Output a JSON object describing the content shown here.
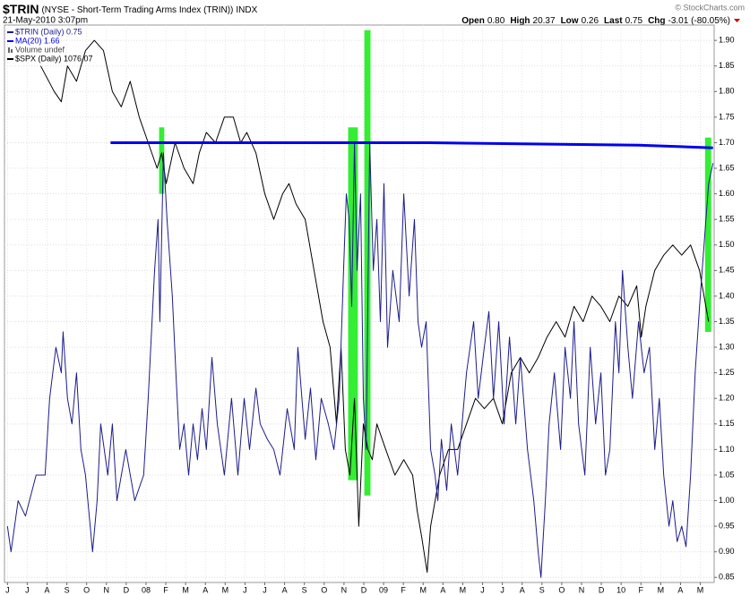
{
  "header": {
    "symbol": "$TRIN",
    "name": "(NYSE - Short-Term Trading Arms Index (TRIN))",
    "exchange": "INDX",
    "date": "21-May-2010 3:07pm",
    "copyright": "© StockCharts.com",
    "quote": [
      {
        "label": "Open",
        "value": "0.80"
      },
      {
        "label": "High",
        "value": "20.37"
      },
      {
        "label": "Low",
        "value": "0.26"
      },
      {
        "label": "Last",
        "value": "0.75"
      },
      {
        "label": "Chg",
        "value": "-3.01 (-80.05%)"
      }
    ]
  },
  "chart_data": {
    "type": "line",
    "grid": true,
    "xlim": [
      -0.15,
      35.7
    ],
    "ylim": [
      0.84,
      1.93
    ],
    "xticks": [
      {
        "value": 0,
        "label": "J"
      },
      {
        "value": 1,
        "label": "J"
      },
      {
        "value": 2,
        "label": "A"
      },
      {
        "value": 3,
        "label": "S"
      },
      {
        "value": 4,
        "label": "O"
      },
      {
        "value": 5,
        "label": "N"
      },
      {
        "value": 6,
        "label": "D"
      },
      {
        "value": 7,
        "label": "08"
      },
      {
        "value": 8,
        "label": "F"
      },
      {
        "value": 9,
        "label": "M"
      },
      {
        "value": 10,
        "label": "A"
      },
      {
        "value": 11,
        "label": "M"
      },
      {
        "value": 12,
        "label": "J"
      },
      {
        "value": 13,
        "label": "J"
      },
      {
        "value": 14,
        "label": "A"
      },
      {
        "value": 15,
        "label": "S"
      },
      {
        "value": 16,
        "label": "O"
      },
      {
        "value": 17,
        "label": "N"
      },
      {
        "value": 18,
        "label": "D"
      },
      {
        "value": 19,
        "label": "09"
      },
      {
        "value": 20,
        "label": "F"
      },
      {
        "value": 21,
        "label": "M"
      },
      {
        "value": 22,
        "label": "A"
      },
      {
        "value": 23,
        "label": "M"
      },
      {
        "value": 24,
        "label": "J"
      },
      {
        "value": 25,
        "label": "J"
      },
      {
        "value": 26,
        "label": "A"
      },
      {
        "value": 27,
        "label": "S"
      },
      {
        "value": 28,
        "label": "O"
      },
      {
        "value": 29,
        "label": "N"
      },
      {
        "value": 30,
        "label": "D"
      },
      {
        "value": 31,
        "label": "10"
      },
      {
        "value": 32,
        "label": "F"
      },
      {
        "value": 33,
        "label": "M"
      },
      {
        "value": 34,
        "label": "A"
      },
      {
        "value": 35,
        "label": "M"
      }
    ],
    "yticks": [
      {
        "value": 0.85,
        "label": "0.85"
      },
      {
        "value": 0.9,
        "label": "0.90"
      },
      {
        "value": 0.95,
        "label": "0.95"
      },
      {
        "value": 1.0,
        "label": "1.00"
      },
      {
        "value": 1.05,
        "label": "1.05"
      },
      {
        "value": 1.1,
        "label": "1.10"
      },
      {
        "value": 1.15,
        "label": "1.15"
      },
      {
        "value": 1.2,
        "label": "1.20"
      },
      {
        "value": 1.25,
        "label": "1.25"
      },
      {
        "value": 1.3,
        "label": "1.30"
      },
      {
        "value": 1.35,
        "label": "1.35"
      },
      {
        "value": 1.4,
        "label": "1.40"
      },
      {
        "value": 1.45,
        "label": "1.45"
      },
      {
        "value": 1.5,
        "label": "1.50"
      },
      {
        "value": 1.55,
        "label": "1.55"
      },
      {
        "value": 1.6,
        "label": "1.60"
      },
      {
        "value": 1.65,
        "label": "1.65"
      },
      {
        "value": 1.7,
        "label": "1.70"
      },
      {
        "value": 1.75,
        "label": "1.75"
      },
      {
        "value": 1.8,
        "label": "1.80"
      },
      {
        "value": 1.85,
        "label": "1.85"
      },
      {
        "value": 1.9,
        "label": "1.90"
      }
    ],
    "volume_note": "Volume undef",
    "highlights": [
      {
        "x0": 7.66,
        "x1": 7.92,
        "y0": 1.6,
        "y1": 1.73,
        "color": "#33ee33"
      },
      {
        "x0": 17.21,
        "x1": 17.7,
        "y0": 1.04,
        "y1": 1.73,
        "color": "#33ee33"
      },
      {
        "x0": 18.03,
        "x1": 18.34,
        "y0": 1.01,
        "y1": 1.92,
        "color": "#33ee33"
      },
      {
        "x0": 35.24,
        "x1": 35.55,
        "y0": 1.33,
        "y1": 1.71,
        "color": "#33ee33"
      }
    ],
    "series": [
      {
        "name": "$SPX (Daily) 1076.07",
        "color": "#000000",
        "width": 1,
        "x": [
          1.68,
          2.36,
          2.72,
          3.03,
          3.49,
          3.94,
          4.39,
          4.85,
          5.3,
          5.75,
          6.2,
          6.66,
          7.11,
          7.56,
          7.79,
          8.02,
          8.47,
          8.92,
          9.38,
          9.69,
          10.05,
          10.51,
          10.96,
          11.41,
          11.78,
          12.09,
          12.55,
          13.0,
          13.45,
          13.9,
          14.22,
          14.58,
          15.04,
          15.49,
          15.94,
          16.3,
          16.62,
          16.85,
          17.07,
          17.3,
          17.53,
          17.75,
          17.98,
          18.21,
          18.43,
          18.66,
          19.11,
          19.57,
          20.02,
          20.47,
          20.7,
          20.92,
          21.2,
          21.38,
          21.83,
          22.28,
          22.74,
          23.19,
          23.64,
          24.09,
          24.55,
          25.0,
          25.45,
          25.91,
          26.36,
          26.81,
          27.26,
          27.72,
          28.17,
          28.62,
          29.08,
          29.53,
          29.98,
          30.43,
          30.89,
          31.34,
          31.79,
          32.02,
          32.25,
          32.7,
          33.15,
          33.61,
          34.06,
          34.51,
          34.96,
          35.19,
          35.42
        ],
        "values": [
          1.85,
          1.8,
          1.78,
          1.85,
          1.82,
          1.88,
          1.9,
          1.88,
          1.8,
          1.77,
          1.82,
          1.75,
          1.7,
          1.65,
          1.68,
          1.62,
          1.7,
          1.65,
          1.62,
          1.68,
          1.72,
          1.7,
          1.75,
          1.75,
          1.7,
          1.72,
          1.68,
          1.6,
          1.55,
          1.6,
          1.62,
          1.58,
          1.55,
          1.45,
          1.35,
          1.3,
          1.15,
          1.3,
          1.1,
          1.05,
          1.2,
          0.95,
          1.15,
          1.1,
          1.08,
          1.15,
          1.1,
          1.05,
          1.08,
          1.05,
          0.98,
          0.93,
          0.86,
          0.95,
          1.05,
          1.1,
          1.1,
          1.15,
          1.2,
          1.18,
          1.2,
          1.15,
          1.25,
          1.28,
          1.25,
          1.28,
          1.32,
          1.35,
          1.32,
          1.38,
          1.35,
          1.4,
          1.38,
          1.35,
          1.4,
          1.38,
          1.42,
          1.32,
          1.38,
          1.45,
          1.48,
          1.5,
          1.48,
          1.5,
          1.45,
          1.4,
          1.35
        ]
      },
      {
        "name": "$TRIN (Daily) 0.75",
        "color": "#1c1c8c",
        "width": 1,
        "x": [
          0,
          0.18,
          0.54,
          0.91,
          1.45,
          1.9,
          2.13,
          2.45,
          2.72,
          2.81,
          3.03,
          3.26,
          3.49,
          3.71,
          3.94,
          4.3,
          4.53,
          4.71,
          5.07,
          5.3,
          5.53,
          5.98,
          6.43,
          6.88,
          7.11,
          7.43,
          7.61,
          7.7,
          7.88,
          8.06,
          8.33,
          8.51,
          8.7,
          8.92,
          9.15,
          9.38,
          9.6,
          9.83,
          10.05,
          10.33,
          10.6,
          10.96,
          11.32,
          11.64,
          11.96,
          12.23,
          12.55,
          12.77,
          13.13,
          13.45,
          13.77,
          14.13,
          14.49,
          14.67,
          15.04,
          15.31,
          15.58,
          15.85,
          16.21,
          16.49,
          16.76,
          16.98,
          17.12,
          17.26,
          17.39,
          17.53,
          17.66,
          17.84,
          17.98,
          18.12,
          18.3,
          18.48,
          18.66,
          18.84,
          19.02,
          19.2,
          19.47,
          19.79,
          20.02,
          20.29,
          20.56,
          20.74,
          20.92,
          21.15,
          21.38,
          21.6,
          21.74,
          21.92,
          22.19,
          22.42,
          22.74,
          23.19,
          23.55,
          23.78,
          24.09,
          24.32,
          24.55,
          24.82,
          25.09,
          25.36,
          25.68,
          25.91,
          26.27,
          26.59,
          26.81,
          26.95,
          27.17,
          27.36,
          27.63,
          27.94,
          28.17,
          28.44,
          28.62,
          28.85,
          29.17,
          29.44,
          29.71,
          29.98,
          30.21,
          30.43,
          30.71,
          30.89,
          31.07,
          31.34,
          31.57,
          31.88,
          32.16,
          32.43,
          32.7,
          32.93,
          33.15,
          33.42,
          33.61,
          33.83,
          34.06,
          34.28,
          34.51,
          34.74,
          34.96,
          35.19,
          35.42,
          35.64
        ],
        "values": [
          0.95,
          0.9,
          1.0,
          0.97,
          1.05,
          1.05,
          1.2,
          1.3,
          1.25,
          1.33,
          1.2,
          1.15,
          1.25,
          1.1,
          1.05,
          0.9,
          1.0,
          1.15,
          1.05,
          1.15,
          1.0,
          1.1,
          1.0,
          1.05,
          1.2,
          1.45,
          1.55,
          1.35,
          1.68,
          1.55,
          1.4,
          1.25,
          1.1,
          1.15,
          1.05,
          1.15,
          1.08,
          1.18,
          1.1,
          1.28,
          1.15,
          1.05,
          1.2,
          1.05,
          1.2,
          1.1,
          1.22,
          1.15,
          1.12,
          1.1,
          1.05,
          1.18,
          1.1,
          1.3,
          1.12,
          1.22,
          1.08,
          1.2,
          1.15,
          1.1,
          1.2,
          1.45,
          1.6,
          1.55,
          1.38,
          1.7,
          1.45,
          1.6,
          1.2,
          1.1,
          1.7,
          1.45,
          1.55,
          1.35,
          1.62,
          1.3,
          1.45,
          1.35,
          1.6,
          1.4,
          1.55,
          1.35,
          1.3,
          1.35,
          1.1,
          1.05,
          1.0,
          1.12,
          1.02,
          1.15,
          1.05,
          1.25,
          1.35,
          1.2,
          1.3,
          1.37,
          1.2,
          1.35,
          1.15,
          1.32,
          1.15,
          1.28,
          1.1,
          1.0,
          0.9,
          0.85,
          1.0,
          1.15,
          1.25,
          1.1,
          1.3,
          1.2,
          1.35,
          1.15,
          1.05,
          1.3,
          1.15,
          1.25,
          1.05,
          1.1,
          1.35,
          1.25,
          1.45,
          1.3,
          1.2,
          1.35,
          1.25,
          1.3,
          1.1,
          1.2,
          1.05,
          0.95,
          1.0,
          0.92,
          0.95,
          0.91,
          1.05,
          1.25,
          1.38,
          1.5,
          1.62,
          1.66
        ]
      },
      {
        "name": "MA(20) 1.66",
        "color": "#0000ee",
        "width": 3,
        "x": [
          5.21,
          21.29,
          31.88,
          35.64
        ],
        "values": [
          1.7,
          1.7,
          1.695,
          1.69
        ]
      }
    ]
  }
}
